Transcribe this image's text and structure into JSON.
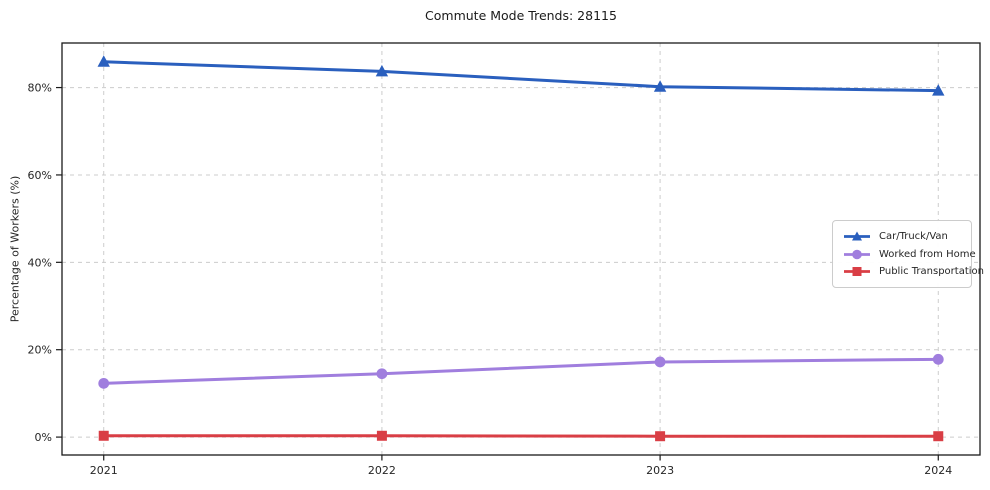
{
  "title": "Commute Mode Trends: 28115",
  "axes": {
    "ylabel": "Percentage of Workers (%)",
    "xlabel": "",
    "xtick_labels": [
      "2021",
      "2022",
      "2023",
      "2024"
    ],
    "ytick_labels": [
      "0%",
      "20%",
      "40%",
      "60%",
      "80%"
    ]
  },
  "colors": {
    "background": "#ffffff",
    "grid": "#cccccc",
    "spine": "#1a1a1a",
    "text": "#262626",
    "car_truck_van": "#2a5fbe",
    "worked_from_home": "#a07ede",
    "public_transportation": "#d93e45"
  },
  "chart_data": {
    "type": "line",
    "title": "Commute Mode Trends: 28115",
    "xlabel": "",
    "ylabel": "Percentage of Workers (%)",
    "x": [
      2021,
      2022,
      2023,
      2024
    ],
    "xtick_labels": [
      "2021",
      "2022",
      "2023",
      "2024"
    ],
    "ytick_values": [
      0,
      20,
      40,
      60,
      80
    ],
    "ytick_labels": [
      "0%",
      "20%",
      "40%",
      "60%",
      "80%"
    ],
    "series": [
      {
        "name": "Car/Truck/Van",
        "values": [
          85.9,
          83.7,
          80.2,
          79.3
        ],
        "color": "#2a5fbe",
        "marker": "triangle"
      },
      {
        "name": "Worked from Home",
        "values": [
          12.3,
          14.5,
          17.2,
          17.8
        ],
        "color": "#a07ede",
        "marker": "circle"
      },
      {
        "name": "Public Transportation",
        "values": [
          0.3,
          0.3,
          0.2,
          0.2
        ],
        "color": "#d93e45",
        "marker": "square"
      }
    ],
    "xlim": [
      2020.85,
      2024.15
    ],
    "ylim": [
      -4.1,
      90.2
    ],
    "grid": true,
    "grid_style": "dashed",
    "legend_position": "center-right"
  }
}
